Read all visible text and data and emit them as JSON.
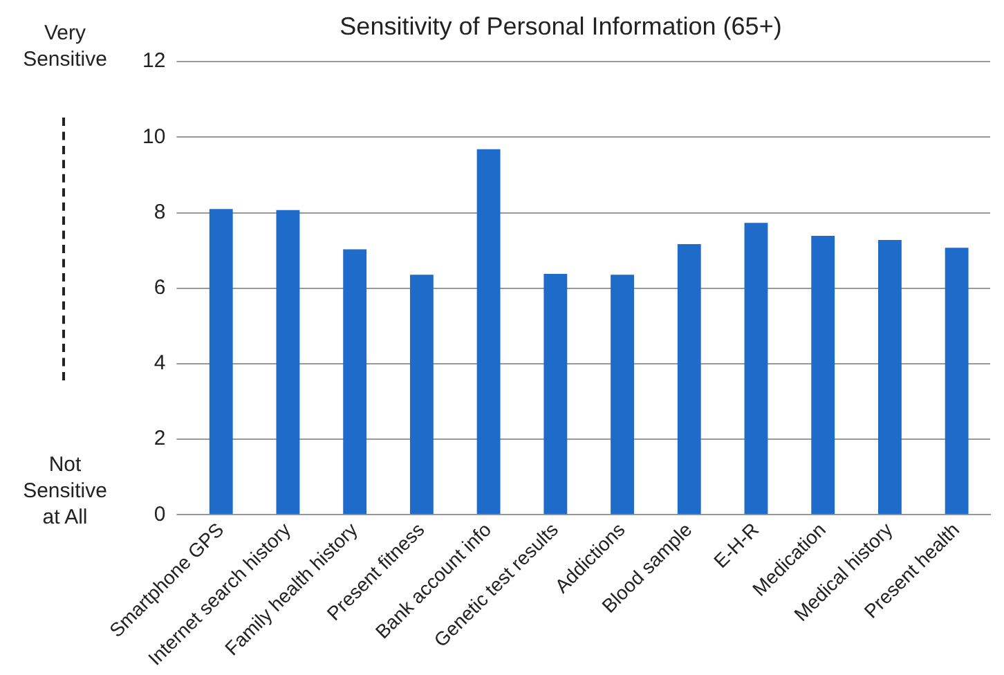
{
  "chart_data": {
    "type": "bar",
    "title": "Sensitivity of Personal Information (65+)",
    "categories": [
      "Smartphone GPS",
      "Internet search history",
      "Family health history",
      "Present fitness",
      "Bank account info",
      "Genetic test results",
      "Addictions",
      "Blood sample",
      "E-H-R",
      "Medication",
      "Medical history",
      "Present health"
    ],
    "values": [
      8.1,
      8.07,
      7.03,
      6.36,
      9.68,
      6.38,
      6.36,
      7.17,
      7.73,
      7.39,
      7.28,
      7.07
    ],
    "color": "#1f6bc9",
    "ylim": [
      0,
      12
    ],
    "yticks": [
      0,
      2,
      4,
      6,
      8,
      10,
      12
    ],
    "grid": "y",
    "legend": false,
    "annotations": [
      "Very Sensitive",
      "Not Sensitive at All"
    ]
  }
}
